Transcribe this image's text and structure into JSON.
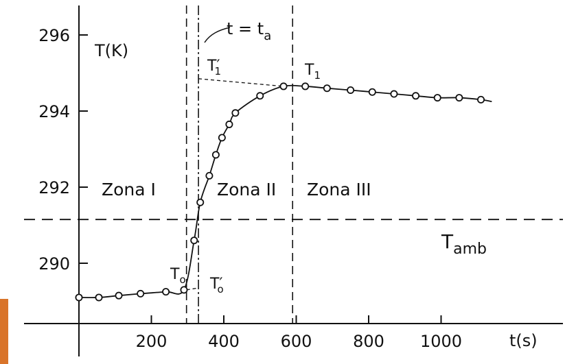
{
  "chart_data": {
    "type": "line",
    "title": "",
    "xlabel": "t(s)",
    "ylabel": "T(K)",
    "xlim": [
      0,
      1300
    ],
    "ylim": [
      288.2,
      297.2
    ],
    "x_ticks": [
      200,
      400,
      600,
      800,
      1000
    ],
    "y_ticks": [
      290,
      292,
      294,
      296
    ],
    "grid": false,
    "series": [
      {
        "points": [
          [
            0,
            289.1
          ],
          [
            55,
            289.1
          ],
          [
            110,
            289.15
          ],
          [
            170,
            289.2
          ],
          [
            240,
            289.25
          ],
          [
            290,
            289.3
          ],
          [
            318,
            290.6
          ],
          [
            335,
            291.6
          ],
          [
            360,
            292.3
          ],
          [
            378,
            292.85
          ],
          [
            395,
            293.3
          ],
          [
            415,
            293.65
          ],
          [
            432,
            293.95
          ],
          [
            500,
            294.4
          ],
          [
            565,
            294.65
          ],
          [
            625,
            294.65
          ],
          [
            685,
            294.6
          ],
          [
            750,
            294.55
          ],
          [
            810,
            294.5
          ],
          [
            870,
            294.45
          ],
          [
            930,
            294.4
          ],
          [
            990,
            294.35
          ],
          [
            1050,
            294.35
          ],
          [
            1110,
            294.3
          ]
        ],
        "curve_end": [
          1140,
          294.25
        ]
      }
    ],
    "reference_lines": {
      "t_ambient": 291.15,
      "t_zone_start": 297,
      "t_a": 330,
      "t_zone_end": 590
    },
    "extrapolation_lines": {
      "upper": {
        "from": [
          330,
          294.85
        ],
        "to": [
          565,
          294.65
        ]
      },
      "lower": {
        "from": [
          297,
          289.3
        ],
        "to": [
          330,
          289.35
        ]
      }
    },
    "annotations": {
      "zone_1": "Zona I",
      "zone_2": "Zona II",
      "zone_3": "Zona III",
      "t_amb": "T",
      "t_amb_sub": "amb",
      "ta_eq": "t = t",
      "ta_sub": "a",
      "t1_prime": "T′",
      "t1_prime_sub": "1",
      "t1": "T",
      "t1_sub": "1",
      "t0": "T",
      "t0_sub": "o",
      "t0_prime": "T′",
      "t0_prime_sub": "o"
    }
  }
}
